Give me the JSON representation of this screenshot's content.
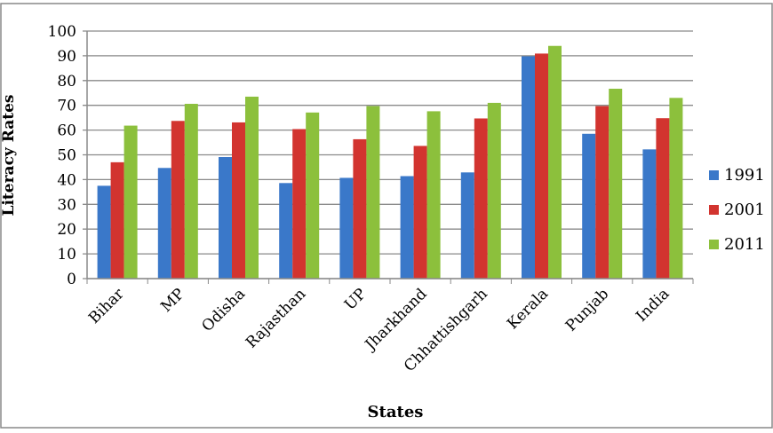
{
  "chart_data": {
    "type": "bar",
    "title": "",
    "xlabel": "States",
    "ylabel": "Literacy Rates",
    "ylim": [
      0,
      100
    ],
    "yticks": [
      0,
      10,
      20,
      30,
      40,
      50,
      60,
      70,
      80,
      90,
      100
    ],
    "grid": true,
    "legend_position": "right",
    "categories": [
      "Bihar",
      "MP",
      "Odisha",
      "Rajasthan",
      "UP",
      "Jharkhand",
      "Chhattishgarh",
      "Kerala",
      "Punjab",
      "India"
    ],
    "series": [
      {
        "name": "1991",
        "color": "#3a78c9",
        "values": [
          37.5,
          44.7,
          49.1,
          38.6,
          40.7,
          41.4,
          42.9,
          89.8,
          58.5,
          52.2
        ]
      },
      {
        "name": "2001",
        "color": "#d2342f",
        "values": [
          47.0,
          63.7,
          63.1,
          60.4,
          56.3,
          53.6,
          64.7,
          90.9,
          69.7,
          64.8
        ]
      },
      {
        "name": "2011",
        "color": "#8cc03c",
        "values": [
          61.8,
          70.6,
          73.5,
          67.1,
          69.7,
          67.6,
          71.0,
          94.0,
          76.7,
          73.0
        ]
      }
    ]
  }
}
